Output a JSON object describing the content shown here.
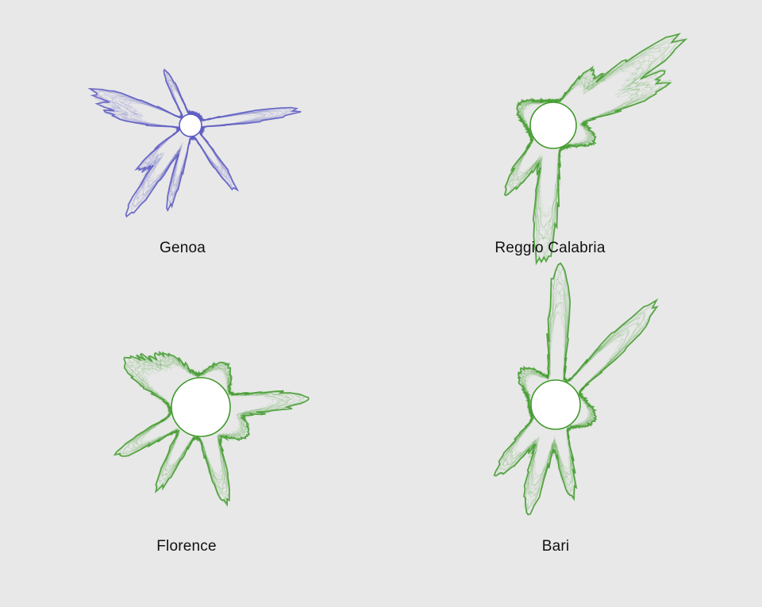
{
  "cities": [
    {
      "name": "Genoa",
      "color": "#5a58c2",
      "center_color": "#ffffff"
    },
    {
      "name": "Reggio Calabria",
      "color": "#3f9a2a",
      "center_color": "#ffffff"
    },
    {
      "name": "Florence",
      "color": "#3f9a2a",
      "center_color": "#ffffff"
    },
    {
      "name": "Bari",
      "color": "#3f9a2a",
      "center_color": "#ffffff"
    }
  ],
  "background": "#e8e8e8"
}
